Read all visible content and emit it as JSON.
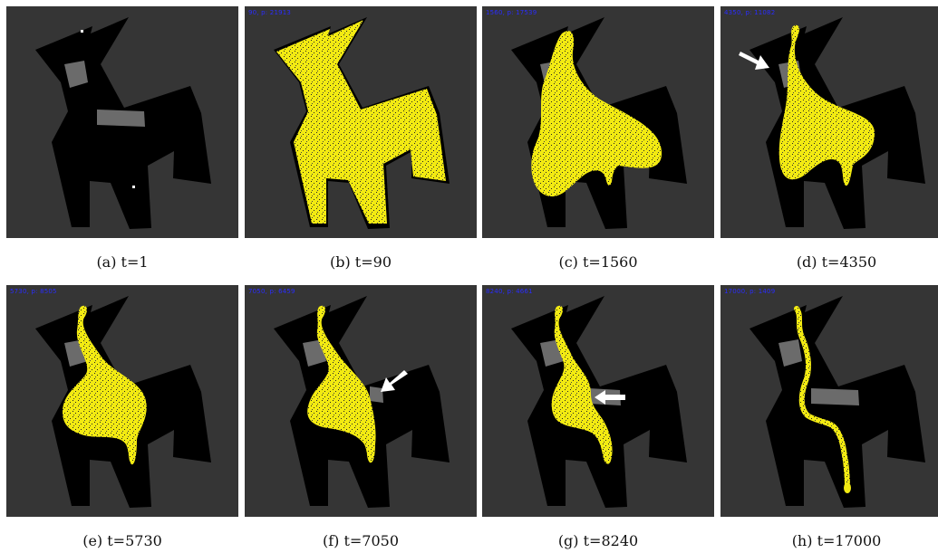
{
  "colors": {
    "background": "#353535",
    "maze": "#000000",
    "obstacle": "#6a6a6a",
    "particles": "#f2ea12",
    "hud_text": "#2a2cff",
    "arrow": "#ffffff"
  },
  "panels": [
    {
      "caption": "(a) t=1",
      "hud": ""
    },
    {
      "caption": "(b) t=90",
      "hud": "90,  p: 21913"
    },
    {
      "caption": "(c) t=1560",
      "hud": "1560,  p: 17539"
    },
    {
      "caption": "(d) t=4350",
      "hud": "4350,  p: 11082"
    },
    {
      "caption": "(e) t=5730",
      "hud": "5730,  p: 8505"
    },
    {
      "caption": "(f) t=7050",
      "hud": "7050,  p: 6459"
    },
    {
      "caption": "(g) t=8240",
      "hud": "8240,  p: 4661"
    },
    {
      "caption": "(h) t=17000",
      "hud": "17000,  p: 1409"
    }
  ]
}
